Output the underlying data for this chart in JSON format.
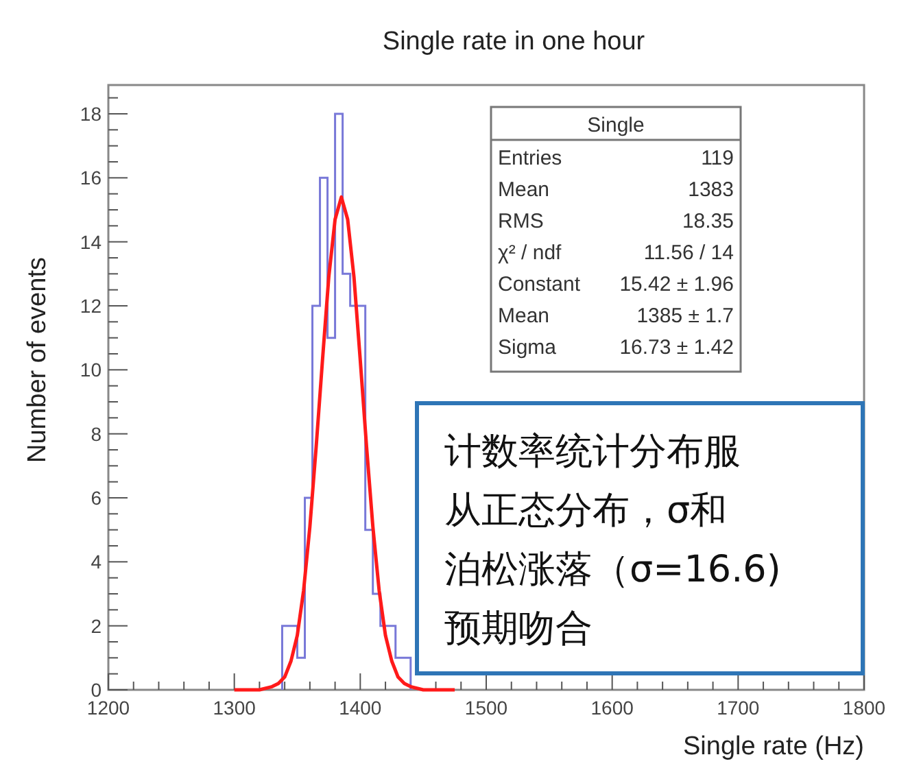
{
  "chart_data": {
    "type": "histogram",
    "title": "Single rate in one hour",
    "xlabel": "Single rate (Hz)",
    "ylabel": "Number of events",
    "bins": [
      1338,
      1344,
      1350,
      1356,
      1362,
      1368,
      1374,
      1380,
      1386,
      1392,
      1398,
      1404,
      1410,
      1416,
      1422,
      1428,
      1434,
      1440
    ],
    "series": [
      {
        "type": "histogram",
        "color": "#7878d8",
        "values": [
          2,
          2,
          1,
          6,
          12,
          16,
          11,
          18,
          13,
          12,
          12,
          5,
          3,
          2,
          2,
          1,
          1
        ]
      },
      {
        "type": "line",
        "color": "#ff1a1a",
        "x": [
          1300,
          1320,
          1330,
          1335,
          1340,
          1345,
          1350,
          1355,
          1360,
          1365,
          1370,
          1375,
          1380,
          1385,
          1390,
          1395,
          1400,
          1405,
          1410,
          1415,
          1420,
          1425,
          1430,
          1435,
          1440,
          1450,
          1475
        ],
        "values": [
          0,
          0,
          0.1,
          0.2,
          0.4,
          0.9,
          1.7,
          3.1,
          5.1,
          7.6,
          10.3,
          12.9,
          14.7,
          15.4,
          14.7,
          12.9,
          10.3,
          7.6,
          5.1,
          3.1,
          1.7,
          0.9,
          0.4,
          0.2,
          0.1,
          0,
          0
        ]
      }
    ],
    "xlim": [
      1200,
      1800
    ],
    "xticks": [
      1200,
      1300,
      1400,
      1500,
      1600,
      1700,
      1800
    ],
    "ylim": [
      0,
      18.9
    ],
    "yticks": [
      0,
      2,
      4,
      6,
      8,
      10,
      12,
      14,
      16,
      18
    ],
    "grid": false,
    "annotations": [
      "Single",
      "Entries",
      "119",
      "Mean",
      "1383",
      "RMS",
      "18.35",
      "χ² / ndf",
      "11.56 / 14",
      "Constant",
      "15.42 ± 1.96",
      "Mean",
      "1385 ± 1.7",
      "Sigma",
      "16.73 ± 1.42",
      "计数率统计分布服",
      "从正态分布，σ和",
      "泊松涨落（σ=16.6)",
      "预期吻合"
    ]
  }
}
